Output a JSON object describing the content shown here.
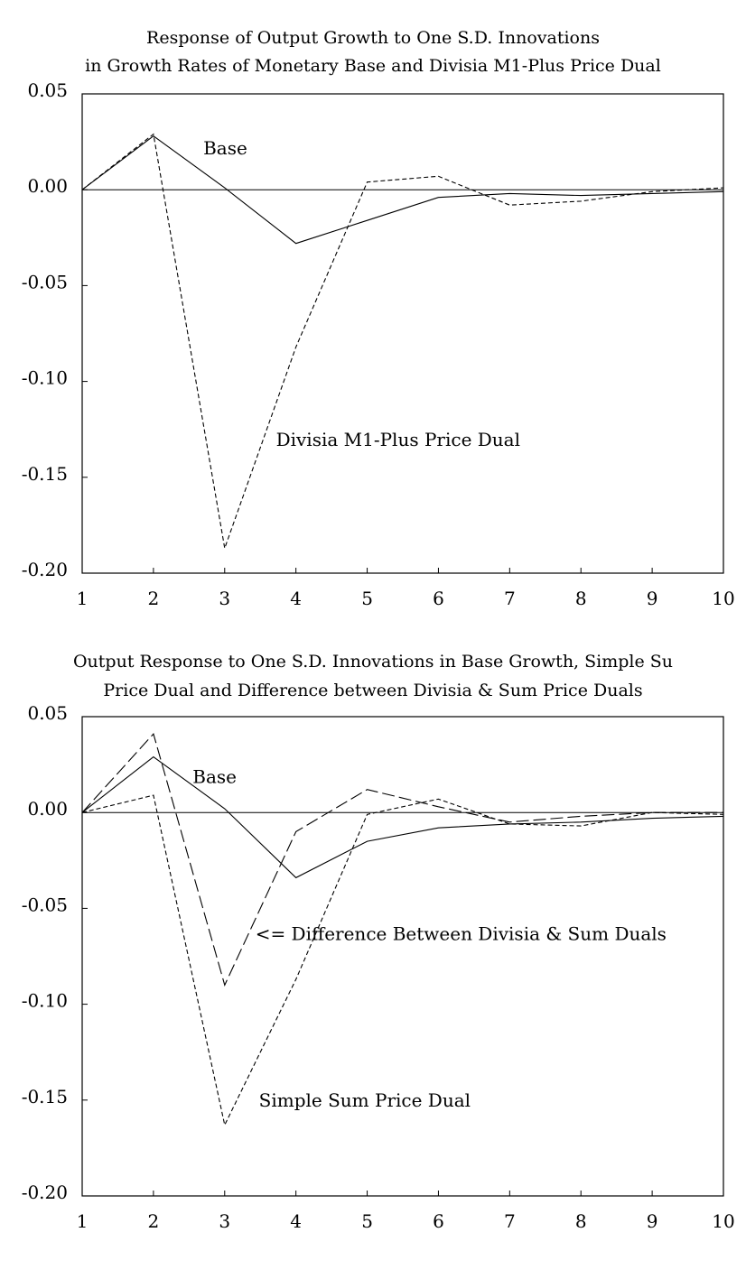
{
  "chart_data": [
    {
      "type": "line",
      "title_lines": [
        "Response of Output Growth to One S.D. Innovations",
        "in Growth Rates of Monetary Base and Divisia M1-Plus Price Dual"
      ],
      "x": [
        1,
        2,
        3,
        4,
        5,
        6,
        7,
        8,
        9,
        10
      ],
      "xlim": [
        1,
        10
      ],
      "ylim": [
        -0.2,
        0.05
      ],
      "yticks": [
        "0.05",
        "0.00",
        "-0.05",
        "-0.10",
        "-0.15",
        "-0.20"
      ],
      "xticks": [
        "1",
        "2",
        "3",
        "4",
        "5",
        "6",
        "7",
        "8",
        "9",
        "10"
      ],
      "grid": false,
      "series": [
        {
          "name": "Base",
          "style": "solid",
          "values": [
            0.0,
            0.028,
            0.001,
            -0.028,
            -0.016,
            -0.004,
            -0.002,
            -0.003,
            -0.002,
            -0.001
          ]
        },
        {
          "name": "Divisia M1-Plus Price Dual",
          "style": "dotted",
          "values": [
            0.0,
            0.029,
            -0.187,
            -0.082,
            0.004,
            0.007,
            -0.008,
            -0.006,
            -0.001,
            0.001
          ]
        }
      ],
      "annotations": [
        {
          "text": "Base",
          "x": 2.7,
          "y": 0.0185
        },
        {
          "text": "Divisia M1-Plus Price Dual",
          "x": 3.72,
          "y": -0.1335
        }
      ]
    },
    {
      "type": "line",
      "title_lines": [
        "Output Response to One S.D. Innovations in Base Growth, Simple Su",
        "Price Dual and Difference between Divisia & Sum Price Duals"
      ],
      "x": [
        1,
        2,
        3,
        4,
        5,
        6,
        7,
        8,
        9,
        10
      ],
      "xlim": [
        1,
        10
      ],
      "ylim": [
        -0.2,
        0.05
      ],
      "yticks": [
        "0.05",
        "0.00",
        "-0.05",
        "-0.10",
        "-0.15",
        "-0.20"
      ],
      "xticks": [
        "1",
        "2",
        "3",
        "4",
        "5",
        "6",
        "7",
        "8",
        "9",
        "10"
      ],
      "grid": false,
      "series": [
        {
          "name": "Base",
          "style": "solid",
          "values": [
            0.0,
            0.029,
            0.002,
            -0.034,
            -0.015,
            -0.008,
            -0.006,
            -0.005,
            -0.003,
            -0.002
          ]
        },
        {
          "name": "Simple Sum Price Dual",
          "style": "dotted",
          "values": [
            0.0,
            0.009,
            -0.163,
            -0.087,
            -0.001,
            0.007,
            -0.006,
            -0.007,
            0.0,
            -0.001
          ]
        },
        {
          "name": "Difference Between Divisia & Sum Duals",
          "style": "dashed",
          "values": [
            0.0,
            0.041,
            -0.09,
            -0.01,
            0.012,
            0.003,
            -0.005,
            -0.002,
            0.0,
            0.0
          ]
        }
      ],
      "annotations": [
        {
          "text": "Base",
          "x": 2.55,
          "y": 0.0155
        },
        {
          "text": "<= Difference Between Divisia & Sum Duals",
          "x": 3.43,
          "y": -0.0665
        },
        {
          "text": "Simple Sum Price Dual",
          "x": 3.48,
          "y": -0.1535
        }
      ]
    }
  ]
}
